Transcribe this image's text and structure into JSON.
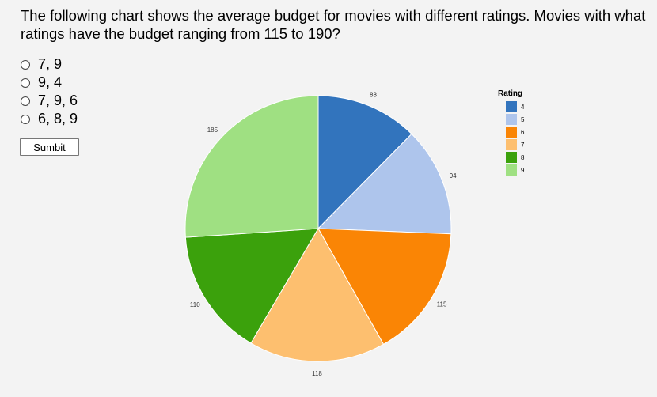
{
  "question": {
    "text": "The following chart shows the average budget for movies with different ratings. Movies with what ratings have the budget ranging from 115 to 190?"
  },
  "options": [
    {
      "label": "7, 9"
    },
    {
      "label": "9, 4"
    },
    {
      "label": "7, 9, 6"
    },
    {
      "label": "6, 8, 9"
    }
  ],
  "submit": {
    "label": "Sumbit"
  },
  "chart_data": {
    "type": "pie",
    "legend_title": "Rating",
    "legend_position": "top-right",
    "categories": [
      "4",
      "5",
      "6",
      "7",
      "8",
      "9"
    ],
    "values": [
      88,
      94,
      115,
      118,
      110,
      185
    ],
    "colors": [
      "#3274bd",
      "#aec5ec",
      "#fa8505",
      "#fdbf6f",
      "#3ba10c",
      "#9fe082"
    ]
  }
}
